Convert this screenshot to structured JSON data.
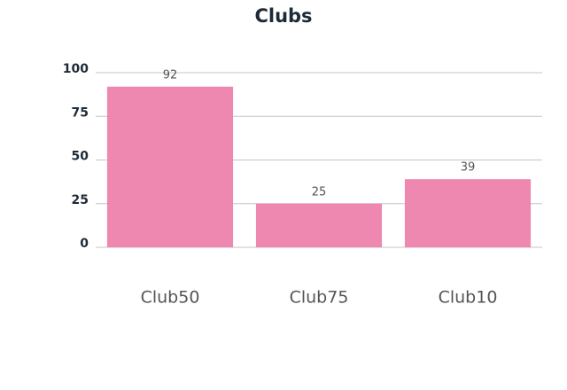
{
  "chart_data": {
    "type": "bar",
    "title": "Clubs",
    "categories": [
      "Club50",
      "Club75",
      "Club10"
    ],
    "values": [
      92,
      25,
      39
    ],
    "color": "#ee82ad",
    "ylim": [
      0,
      100
    ],
    "yticks": [
      0,
      25,
      50,
      75,
      100
    ],
    "grid": true
  }
}
